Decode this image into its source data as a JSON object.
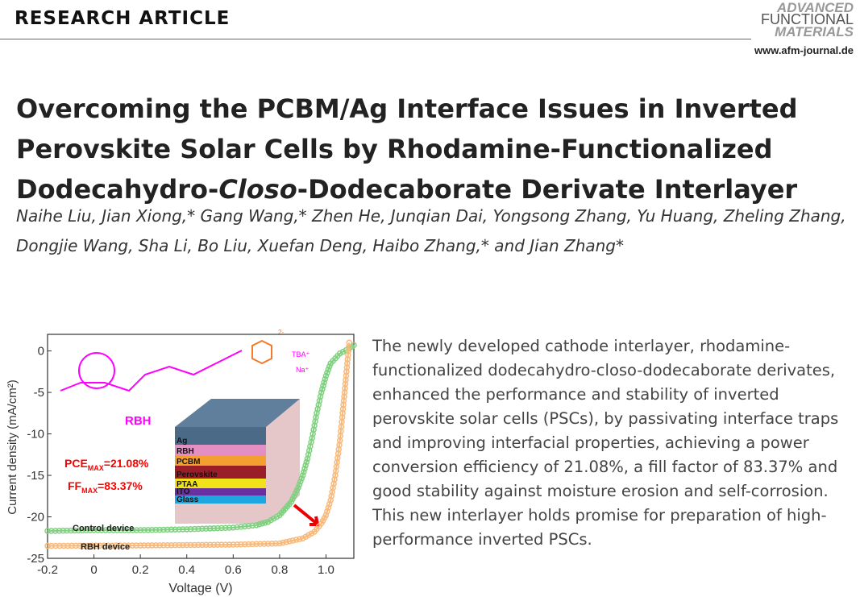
{
  "header": {
    "section": "RESEARCH ARTICLE",
    "journal_logo": [
      "ADVANCED",
      "FUNCTIONAL",
      "MATERIALS"
    ],
    "url": "www.afm-journal.de"
  },
  "title": {
    "part1": "Overcoming the PCBM/Ag Interface Issues in Inverted Perovskite Solar Cells by Rhodamine-Functionalized Dodecahydro-",
    "italic": "Closo",
    "part2": "-Dodecaborate Derivate Interlayer"
  },
  "authors": "Naihe Liu, Jian Xiong,* Gang Wang,* Zhen He, Junqian Dai, Yongsong Zhang, Yu Huang, Zheling Zhang, Dongjie Wang, Sha Li, Bo Liu, Xuefan Deng, Haibo Zhang,* and Jian Zhang*",
  "abstract": "The newly developed cathode interlayer, rhodamine-functionalized dodecahydro-closo-dodecaborate derivates, enhanced the performance and stability of inverted perovskite solar cells (PSCs), by passivating interface traps and improving interfacial properties, achieving a power conversion efficiency of 21.08%, a fill factor of 83.37% and good stability against moisture erosion and self-corrosion. This new interlayer holds promise for preparation of high-performance inverted PSCs.",
  "chart_data": {
    "type": "scatter",
    "xlabel": "Voltage (V)",
    "ylabel": "Current density (mA/cm²)",
    "xlim": [
      -0.2,
      1.12
    ],
    "ylim": [
      -25,
      2
    ],
    "xticks": [
      "-0.2",
      "0",
      "0.2",
      "0.4",
      "0.6",
      "0.8",
      "1.0"
    ],
    "yticks": [
      "0",
      "-5",
      "-10",
      "-15",
      "-20",
      "-25"
    ],
    "series": [
      {
        "name": "Control device",
        "color": "#7fd17f",
        "x": [
          -0.2,
          0,
          0.2,
          0.4,
          0.6,
          0.7,
          0.75,
          0.8,
          0.85,
          0.88,
          0.9,
          0.92,
          0.94,
          0.96,
          0.98,
          1.0,
          1.02,
          1.06,
          1.1,
          1.12
        ],
        "y": [
          -21.7,
          -21.6,
          -21.6,
          -21.5,
          -21.3,
          -21.0,
          -20.6,
          -19.8,
          -18.2,
          -16.5,
          -15,
          -13,
          -10.5,
          -7.5,
          -5,
          -3,
          -1.5,
          -0.3,
          0.3,
          0.7
        ]
      },
      {
        "name": "RBH device",
        "color": "#f8b97a",
        "x": [
          -0.2,
          0.2,
          0.4,
          0.6,
          0.8,
          0.9,
          0.95,
          0.98,
          1.0,
          1.02,
          1.04,
          1.06,
          1.07,
          1.08,
          1.09,
          1.1
        ],
        "y": [
          -23.5,
          -23.45,
          -23.4,
          -23.35,
          -23.2,
          -22.6,
          -21.8,
          -20.8,
          -19.8,
          -18,
          -15,
          -10.8,
          -8,
          -5,
          -2,
          1
        ]
      }
    ],
    "annotations": {
      "pce": "PCE",
      "ff": "FF",
      "sub": "MAX",
      "pce_val": "=21.08%",
      "ff_val": "=83.37%",
      "molecule": "RBH",
      "cation1": "TBA⁺",
      "cation2": "Na⁺",
      "charge": "2-"
    },
    "layers": [
      "Ag",
      "RBH",
      "PCBM",
      "Perovskite",
      "PTAA",
      "ITO",
      "Glass"
    ],
    "layer_colors": [
      "#4a6a88",
      "#e38fc4",
      "#f4a030",
      "#9a1e28",
      "#f2e21a",
      "#6a2fa0",
      "#1ea6e0"
    ]
  }
}
